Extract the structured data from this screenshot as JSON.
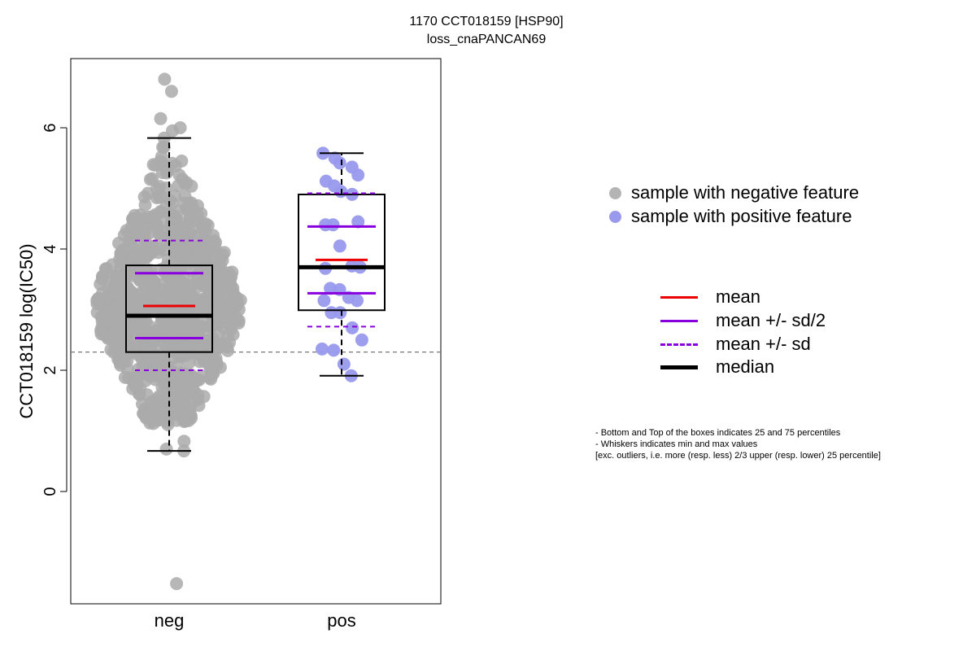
{
  "title": {
    "line1": "1170 CCT018159 [HSP90]",
    "line2": "loss_cnaPANCAN69"
  },
  "chart_data": {
    "type": "box-beeswarm",
    "ylabel": "CCT018159 log(IC50)",
    "xlabel": "",
    "categories": [
      "neg",
      "pos"
    ],
    "yticks": [
      0,
      2,
      4,
      6
    ],
    "ylim": [
      -1.8,
      7.1
    ],
    "threshold_y": 2.3,
    "grid": false,
    "groups": [
      {
        "name": "neg",
        "color": "#aaaaaa",
        "box": {
          "q1": 2.3,
          "median": 2.9,
          "q3": 3.73,
          "whisker_low": 0.67,
          "whisker_high": 5.83
        },
        "mean": 3.06,
        "mean_minus_half_sd": 2.53,
        "mean_plus_half_sd": 3.6,
        "mean_minus_sd": 2.0,
        "mean_plus_sd": 4.14,
        "n_points": 900
      },
      {
        "name": "pos",
        "color": "#9999ee",
        "box": {
          "q1": 2.99,
          "median": 3.7,
          "q3": 4.9,
          "whisker_low": 1.91,
          "whisker_high": 5.58
        },
        "mean": 3.82,
        "mean_minus_half_sd": 3.27,
        "mean_plus_half_sd": 4.37,
        "mean_minus_sd": 2.72,
        "mean_plus_sd": 4.92,
        "points": [
          5.58,
          5.5,
          5.42,
          5.35,
          5.22,
          5.12,
          5.04,
          4.95,
          4.9,
          4.45,
          4.4,
          4.4,
          4.05,
          3.72,
          3.7,
          3.68,
          3.35,
          3.33,
          3.2,
          3.15,
          3.15,
          2.95,
          2.95,
          2.7,
          2.5,
          2.35,
          2.33,
          2.1,
          1.91
        ]
      }
    ]
  },
  "legend": {
    "neg_label": "sample with negative feature",
    "pos_label": "sample with positive feature",
    "neg_color": "#b4b4b4",
    "pos_color": "#9999ee",
    "mean_label": "mean",
    "half_sd_label": "mean +/- sd/2",
    "sd_label": "mean +/- sd",
    "median_label": "median",
    "mean_color": "#ee0000",
    "sd_color": "#8800dd",
    "median_color": "#000000"
  },
  "notes": {
    "line1": "- Bottom and Top of the boxes indicates 25 and 75 percentiles",
    "line2": "- Whiskers indicates min and max values",
    "line3": "[exc. outliers, i.e. more (resp. less) 2/3 upper (resp. lower) 25 percentile]"
  }
}
